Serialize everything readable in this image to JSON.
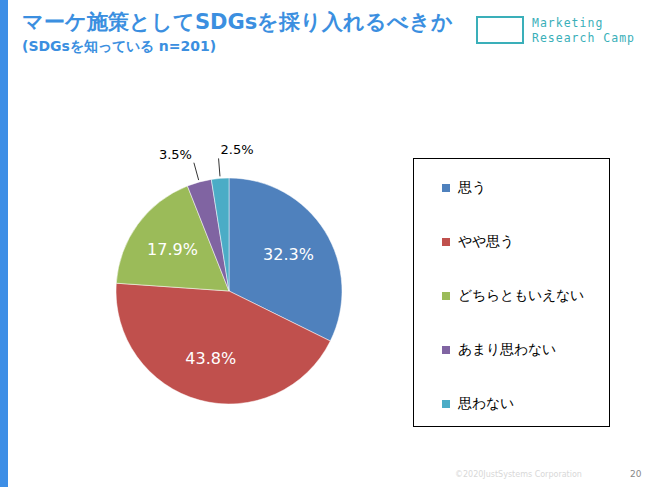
{
  "chart_data": {
    "type": "pie",
    "title": "マーケ施策としてSDGsを採り入れるべきか",
    "subtitle": "(SDGsを知っている n=201)",
    "categories": [
      "思う",
      "やや思う",
      "どちらともいえない",
      "あまり思わない",
      "思わない"
    ],
    "values": [
      32.3,
      43.8,
      17.9,
      3.5,
      2.5
    ],
    "value_labels": [
      "32.3%",
      "43.8%",
      "17.9%",
      "3.5%",
      "2.5%"
    ],
    "colors": [
      "#4F81BD",
      "#C0504D",
      "#9BBB59",
      "#8064A2",
      "#4BACC6"
    ],
    "data_labels": true,
    "legend": "right"
  },
  "header": {
    "logo": [
      "Marketing",
      "Research Camp"
    ]
  },
  "footer": {
    "copyright": "©2020JustSystems Corporation",
    "page": "20"
  }
}
